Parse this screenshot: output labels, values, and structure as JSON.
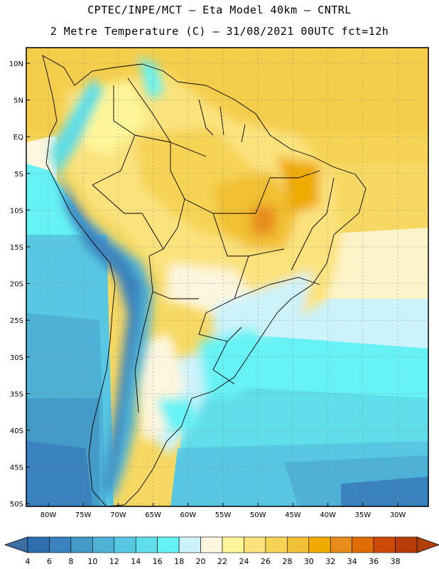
{
  "header": {
    "line1": "CPTEC/INPE/MCT –  Eta Model 40km – CNTRL",
    "line2": "2 Metre Temperature (C) – 31/08/2021 00UTC fct=12h"
  },
  "map": {
    "lat_ticks": [
      "10N",
      "5N",
      "EQ",
      "5S",
      "10S",
      "15S",
      "20S",
      "25S",
      "30S",
      "35S",
      "40S",
      "45S",
      "50S"
    ],
    "lon_ticks": [
      "80W",
      "75W",
      "70W",
      "65W",
      "60W",
      "55W",
      "50W",
      "45W",
      "40W",
      "35W",
      "30W"
    ]
  },
  "colorbar": {
    "labels": [
      "4",
      "6",
      "8",
      "10",
      "12",
      "14",
      "16",
      "18",
      "20",
      "22",
      "24",
      "26",
      "28",
      "30",
      "32",
      "34",
      "36",
      "38"
    ],
    "colors": [
      "#2e6fae",
      "#3a82bd",
      "#449bc8",
      "#4eb2d6",
      "#58c8e2",
      "#5fdde8",
      "#66f2f4",
      "#ccf2fb",
      "#fdf5dd",
      "#fff59a",
      "#fbe27d",
      "#f6d355",
      "#f1bf33",
      "#efab00",
      "#e88d1c",
      "#df6b05",
      "#cc4a05",
      "#b63b04"
    ],
    "low_color": "#3a6fa6",
    "high_color": "#b03e09"
  }
}
